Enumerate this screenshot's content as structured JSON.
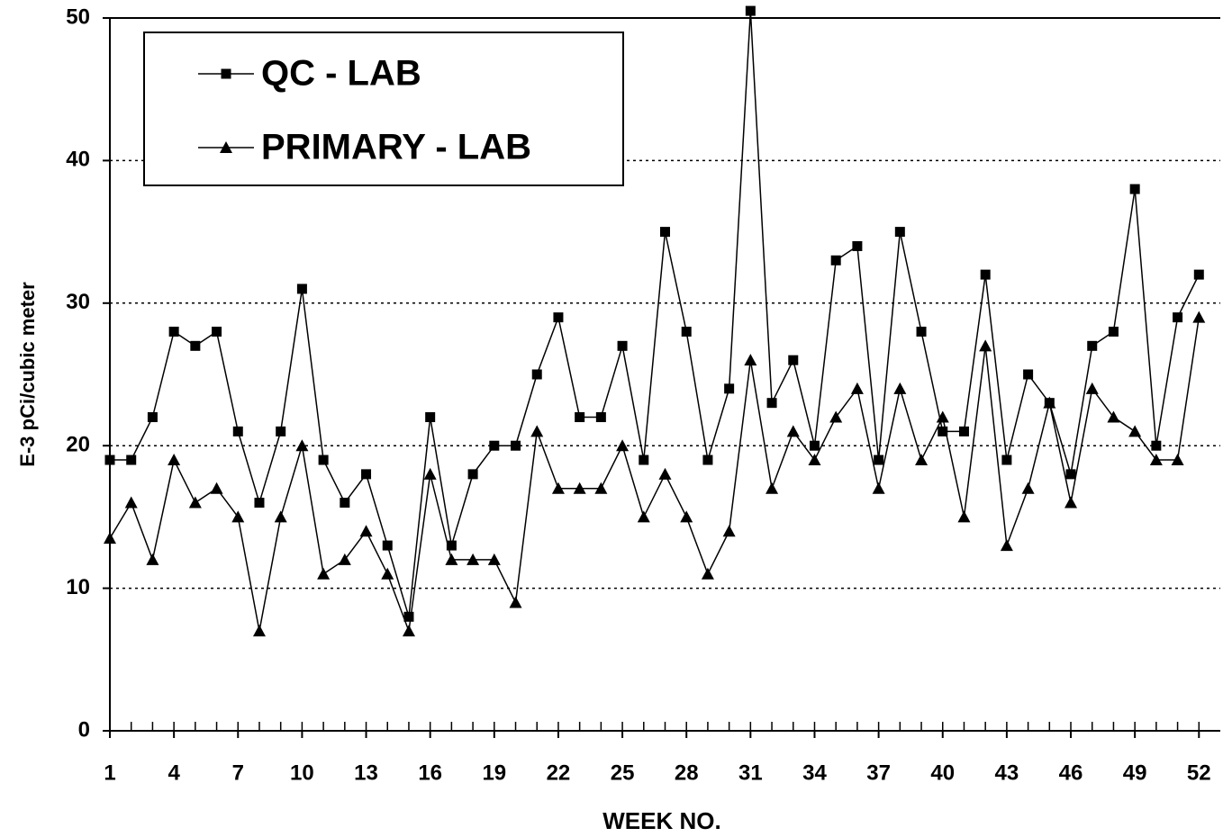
{
  "chart_data": {
    "type": "line",
    "xlabel": "WEEK NO.",
    "ylabel": "E-3 pCi/cubic meter",
    "x": [
      1,
      2,
      3,
      4,
      5,
      6,
      7,
      8,
      9,
      10,
      11,
      12,
      13,
      14,
      15,
      16,
      17,
      18,
      19,
      20,
      21,
      22,
      23,
      24,
      25,
      26,
      27,
      28,
      29,
      30,
      31,
      32,
      33,
      34,
      35,
      36,
      37,
      38,
      39,
      40,
      41,
      42,
      43,
      44,
      45,
      46,
      47,
      48,
      49,
      50,
      51,
      52
    ],
    "series": [
      {
        "name": "QC - LAB",
        "color": "#000000",
        "marker": "square",
        "values": [
          19,
          19,
          22,
          28,
          27,
          28,
          21,
          16,
          21,
          31,
          19,
          16,
          18,
          13,
          8,
          22,
          13,
          18,
          20,
          20,
          25,
          29,
          22,
          22,
          27,
          19,
          35,
          28,
          19,
          24,
          50.5,
          23,
          26,
          20,
          33,
          34,
          19,
          35,
          28,
          21,
          21,
          32,
          19,
          25,
          23,
          18,
          27,
          28,
          38,
          20,
          29,
          32
        ]
      },
      {
        "name": "PRIMARY - LAB",
        "color": "#000000",
        "marker": "triangle",
        "values": [
          13.5,
          16,
          12,
          19,
          16,
          17,
          15,
          7,
          15,
          20,
          11,
          12,
          14,
          11,
          7,
          18,
          12,
          12,
          12,
          9,
          21,
          17,
          17,
          17,
          20,
          15,
          18,
          15,
          11,
          14,
          26,
          17,
          21,
          19,
          22,
          24,
          17,
          24,
          19,
          22,
          15,
          27,
          13,
          17,
          23,
          16,
          24,
          22,
          21,
          19,
          19,
          29
        ]
      }
    ],
    "xlim": [
      1,
      53
    ],
    "xticks": [
      1,
      4,
      7,
      10,
      13,
      16,
      19,
      22,
      25,
      28,
      31,
      34,
      37,
      40,
      43,
      46,
      49,
      52
    ],
    "ylim": [
      0,
      50
    ],
    "yticks": [
      0,
      10,
      20,
      30,
      40,
      50
    ],
    "grid": true,
    "legend": "upper left"
  }
}
